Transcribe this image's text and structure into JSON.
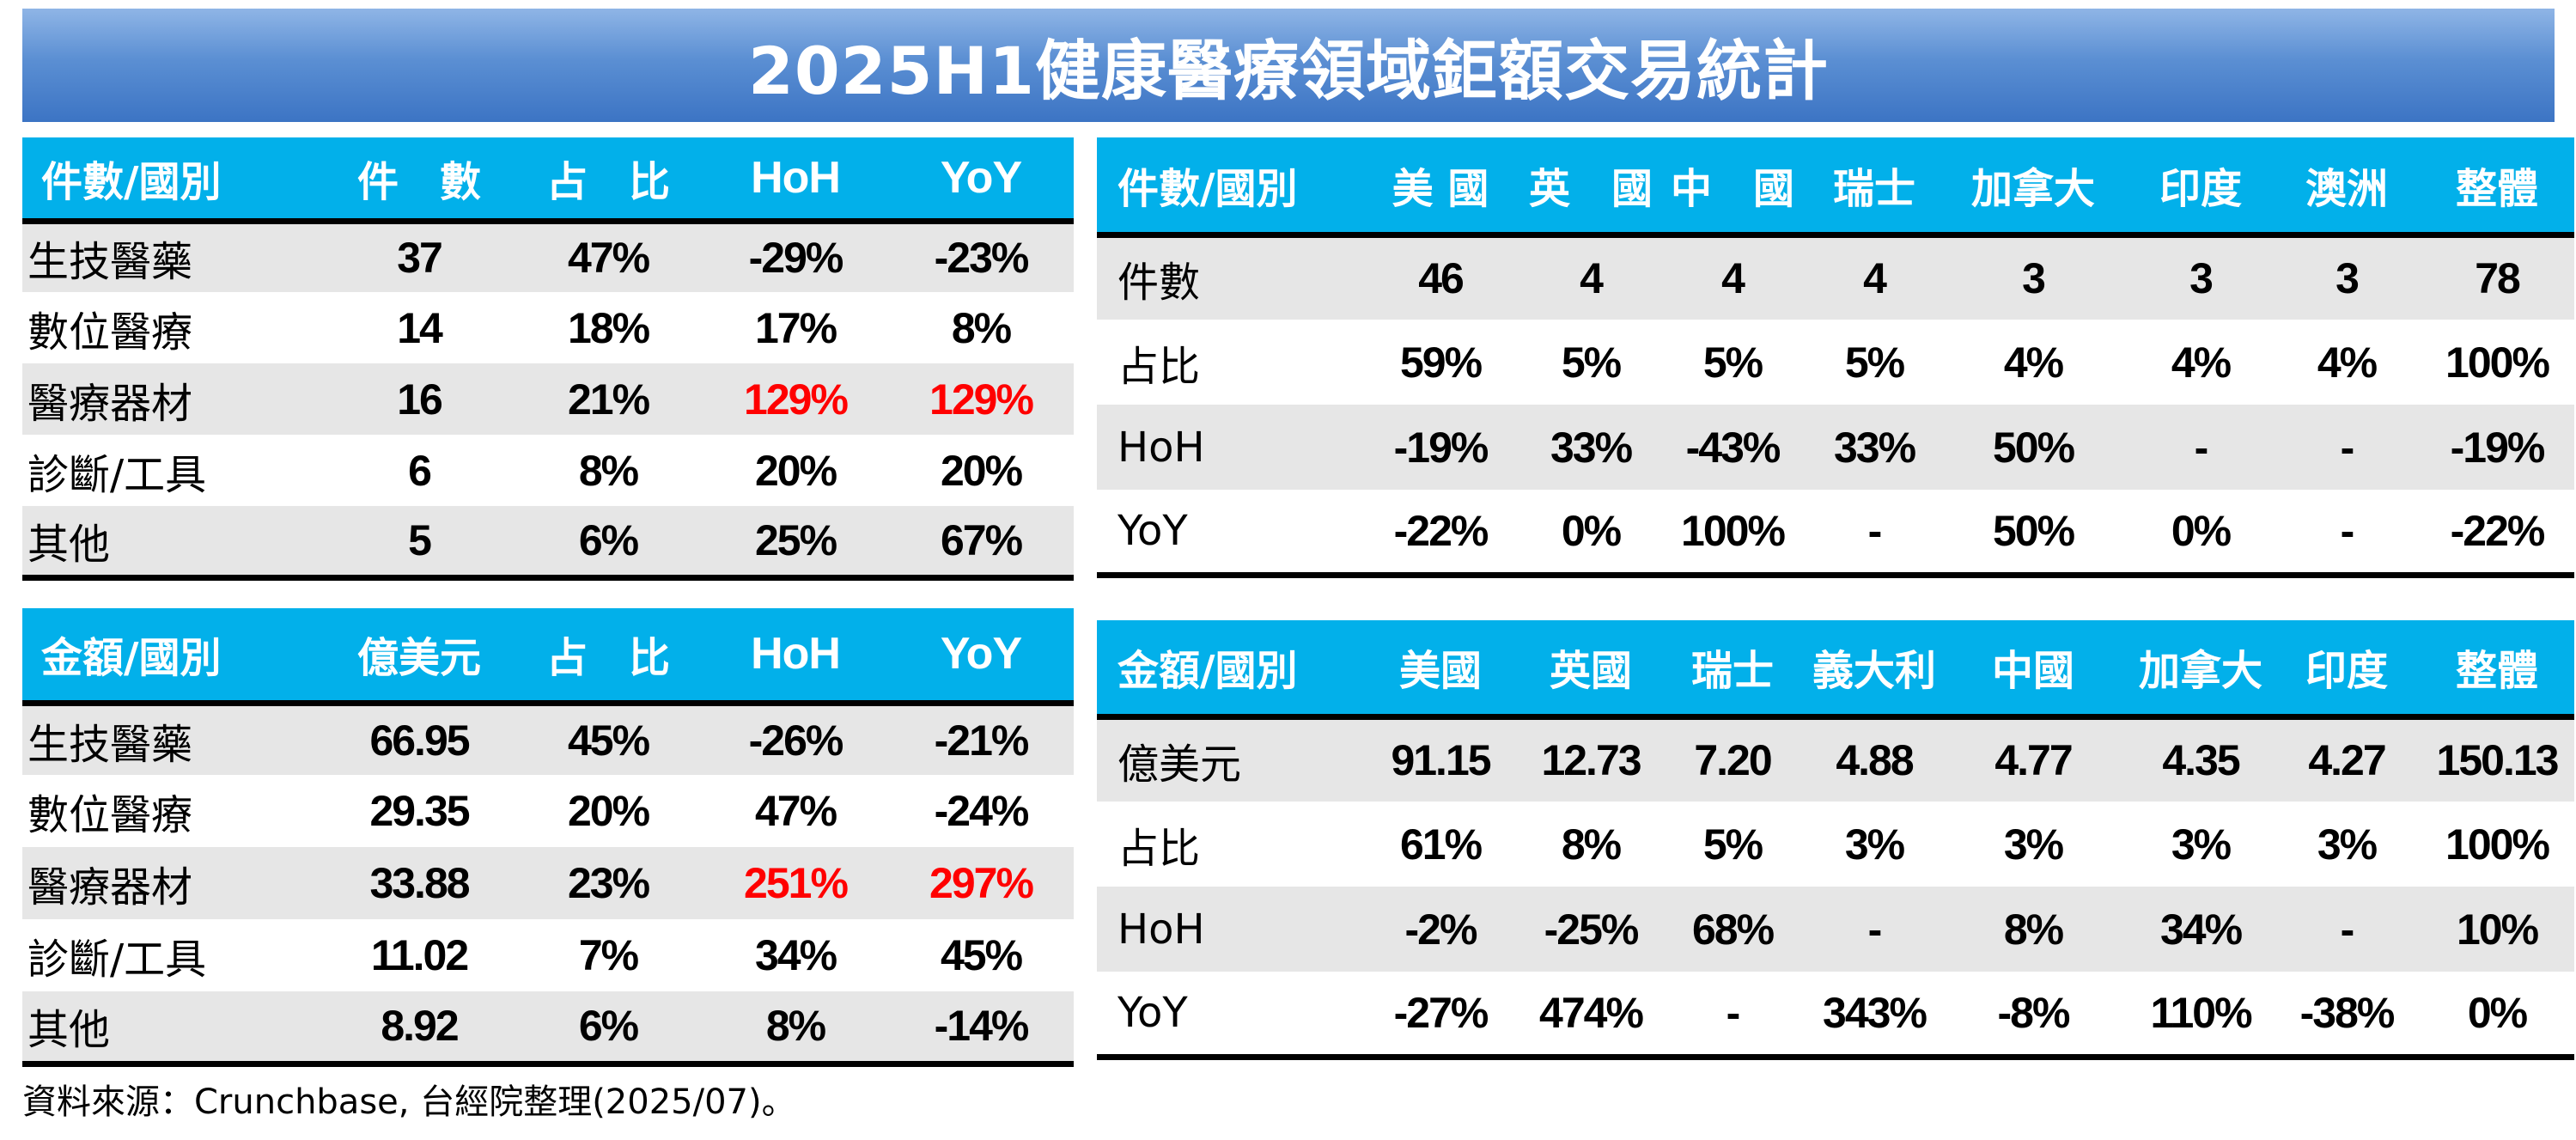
{
  "title": "2025H1健康醫療領域鉅額交易統計",
  "source": "資料來源：Crunchbase, 台經院整理(2025/07)。",
  "colors": {
    "header_bg": "#02b0ea",
    "title_bar": "#4a82cc",
    "highlight": "#ff0000",
    "stripe": "#e6e6e6"
  },
  "left_count": {
    "headers": [
      "件數/國別",
      "件　數",
      "占　比",
      "HoH",
      "YoY"
    ],
    "rows": [
      {
        "cells": [
          "生技醫藥",
          "37",
          "47%",
          "-29%",
          "-23%"
        ]
      },
      {
        "cells": [
          "數位醫療",
          "14",
          "18%",
          "17%",
          "8%"
        ]
      },
      {
        "cells": [
          "醫療器材",
          "16",
          "21%",
          "129%",
          "129%"
        ]
      },
      {
        "cells": [
          "診斷/工具",
          "6",
          "8%",
          "20%",
          "20%"
        ]
      },
      {
        "cells": [
          "其他",
          "5",
          "6%",
          "25%",
          "67%"
        ]
      }
    ]
  },
  "left_amount": {
    "headers": [
      "金額/國別",
      "億美元",
      "占　比",
      "HoH",
      "YoY"
    ],
    "rows": [
      {
        "cells": [
          "生技醫藥",
          "66.95",
          "45%",
          "-26%",
          "-21%"
        ]
      },
      {
        "cells": [
          "數位醫療",
          "29.35",
          "20%",
          "47%",
          "-24%"
        ]
      },
      {
        "cells": [
          "醫療器材",
          "33.88",
          "23%",
          "251%",
          "297%"
        ]
      },
      {
        "cells": [
          "診斷/工具",
          "11.02",
          "7%",
          "34%",
          "45%"
        ]
      },
      {
        "cells": [
          "其他",
          "8.92",
          "6%",
          "8%",
          "-14%"
        ]
      }
    ]
  },
  "right_count": {
    "headers": [
      "件數/國別",
      "美 國",
      "英　國",
      "中　國",
      "瑞士",
      "加拿大",
      "印度",
      "澳洲",
      "整體"
    ],
    "rows": [
      {
        "cells": [
          "件數",
          "46",
          "4",
          "4",
          "4",
          "3",
          "3",
          "3",
          "78"
        ]
      },
      {
        "cells": [
          "占比",
          "59%",
          "5%",
          "5%",
          "5%",
          "4%",
          "4%",
          "4%",
          "100%"
        ]
      },
      {
        "cells": [
          "HoH",
          "-19%",
          "33%",
          "-43%",
          "33%",
          "50%",
          "-",
          "-",
          "-19%"
        ]
      },
      {
        "cells": [
          "YoY",
          "-22%",
          "0%",
          "100%",
          "-",
          "50%",
          "0%",
          "-",
          "-22%"
        ]
      }
    ]
  },
  "right_amount": {
    "headers": [
      "金額/國別",
      "美國",
      "英國",
      "瑞士",
      "義大利",
      "中國",
      "加拿大",
      "印度",
      "整體"
    ],
    "rows": [
      {
        "cells": [
          "億美元",
          "91.15",
          "12.73",
          "7.20",
          "4.88",
          "4.77",
          "4.35",
          "4.27",
          "150.13"
        ]
      },
      {
        "cells": [
          "占比",
          "61%",
          "8%",
          "5%",
          "3%",
          "3%",
          "3%",
          "3%",
          "100%"
        ]
      },
      {
        "cells": [
          "HoH",
          "-2%",
          "-25%",
          "68%",
          "-",
          "8%",
          "34%",
          "-",
          "10%"
        ]
      },
      {
        "cells": [
          "YoY",
          "-27%",
          "474%",
          "-",
          "343%",
          "-8%",
          "110%",
          "-38%",
          "0%"
        ]
      }
    ]
  }
}
